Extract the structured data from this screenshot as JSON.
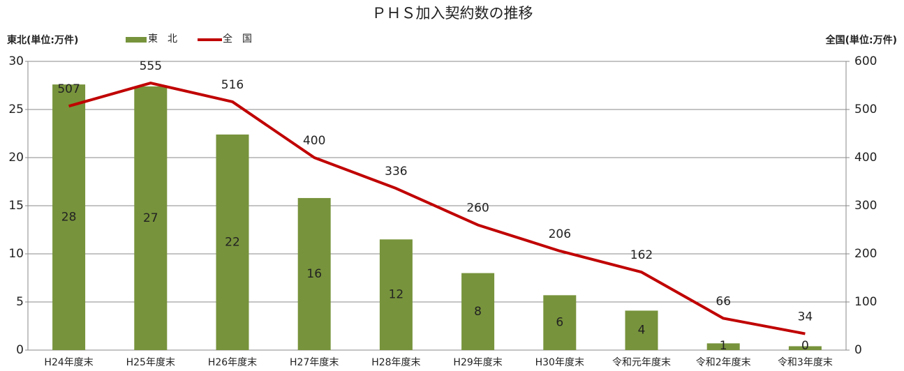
{
  "chart_data": {
    "type": "combo",
    "title": "ＰＨＳ加入契約数の推移",
    "y_label": "東北(単位:万件)",
    "y2_label": "全国(単位:万件)",
    "categories": [
      "H24年度末",
      "H25年度末",
      "H26年度末",
      "H27年度末",
      "H28年度末",
      "H29年度末",
      "H30年度末",
      "令和元年度末",
      "令和2年度末",
      "令和3年度末"
    ],
    "series": [
      {
        "name": "東　北",
        "type": "bar",
        "color": "#77933c",
        "values": [
          27.6,
          27.4,
          22.4,
          15.8,
          11.5,
          8.0,
          5.7,
          4.1,
          0.7,
          0.4
        ],
        "value_labels": [
          "28",
          "27",
          "22",
          "16",
          "12",
          "8",
          "6",
          "4",
          "1",
          "0"
        ]
      },
      {
        "name": "全　国",
        "type": "line",
        "color": "#c00000",
        "axis": "y2",
        "values": [
          507,
          555,
          516,
          400,
          336,
          260,
          206,
          162,
          66,
          34
        ]
      }
    ],
    "ylim": [
      0,
      30
    ],
    "yticks": [
      0,
      5,
      10,
      15,
      20,
      25,
      30
    ],
    "y2lim": [
      0,
      600
    ],
    "y2ticks": [
      0,
      100,
      200,
      300,
      400,
      500,
      600
    ],
    "grid": true,
    "legend": "top"
  }
}
